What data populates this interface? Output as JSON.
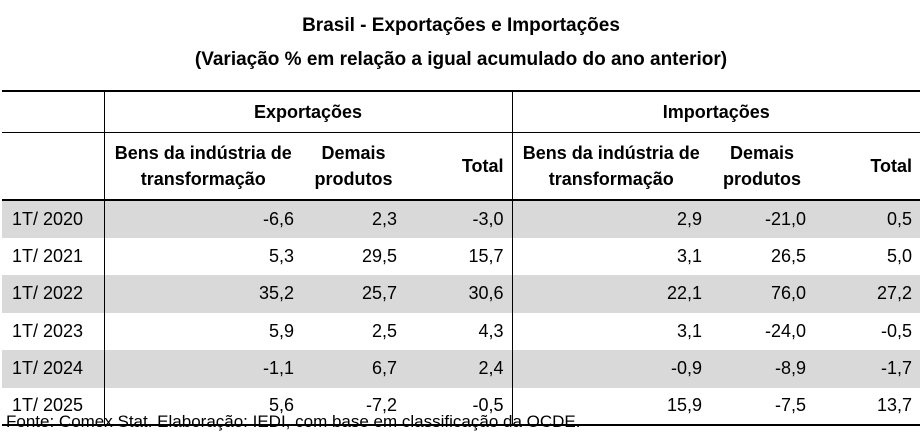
{
  "title_line1": "Brasil - Exportações e Importações",
  "title_line2": "(Variação % em relação a igual acumulado do ano anterior)",
  "groups": {
    "exports": "Exportações",
    "imports": "Importações"
  },
  "subheaders": {
    "exports": {
      "manuf_line1": "Bens da indústria de",
      "manuf_line2": "transformação",
      "other_line1": "Demais",
      "other_line2": "produtos",
      "total": "Total"
    },
    "imports": {
      "manuf_line1": "Bens da indústria de",
      "manuf_line2": "transformação",
      "other_line1": "Demais",
      "other_line2": "produtos",
      "total": "Total"
    }
  },
  "rows": [
    {
      "period": "1T/ 2020",
      "exp_manuf": "-6,6",
      "exp_other": "2,3",
      "exp_total": "-3,0",
      "imp_manuf": "2,9",
      "imp_other": "-21,0",
      "imp_total": "0,5"
    },
    {
      "period": "1T/ 2021",
      "exp_manuf": "5,3",
      "exp_other": "29,5",
      "exp_total": "15,7",
      "imp_manuf": "3,1",
      "imp_other": "26,5",
      "imp_total": "5,0"
    },
    {
      "period": "1T/ 2022",
      "exp_manuf": "35,2",
      "exp_other": "25,7",
      "exp_total": "30,6",
      "imp_manuf": "22,1",
      "imp_other": "76,0",
      "imp_total": "27,2"
    },
    {
      "period": "1T/ 2023",
      "exp_manuf": "5,9",
      "exp_other": "2,5",
      "exp_total": "4,3",
      "imp_manuf": "3,1",
      "imp_other": "-24,0",
      "imp_total": "-0,5"
    },
    {
      "period": "1T/ 2024",
      "exp_manuf": "-1,1",
      "exp_other": "6,7",
      "exp_total": "2,4",
      "imp_manuf": "-0,9",
      "imp_other": "-8,9",
      "imp_total": "-1,7"
    },
    {
      "period": "1T/ 2025",
      "exp_manuf": "5,6",
      "exp_other": "-7,2",
      "exp_total": "-0,5",
      "imp_manuf": "15,9",
      "imp_other": "-7,5",
      "imp_total": "13,7"
    }
  ],
  "source": "Fonte: Comex Stat. Elaboração: IEDI, com base em classificação da OCDE.",
  "colors": {
    "row_shade": "#d9d9d9",
    "text": "#000000"
  }
}
